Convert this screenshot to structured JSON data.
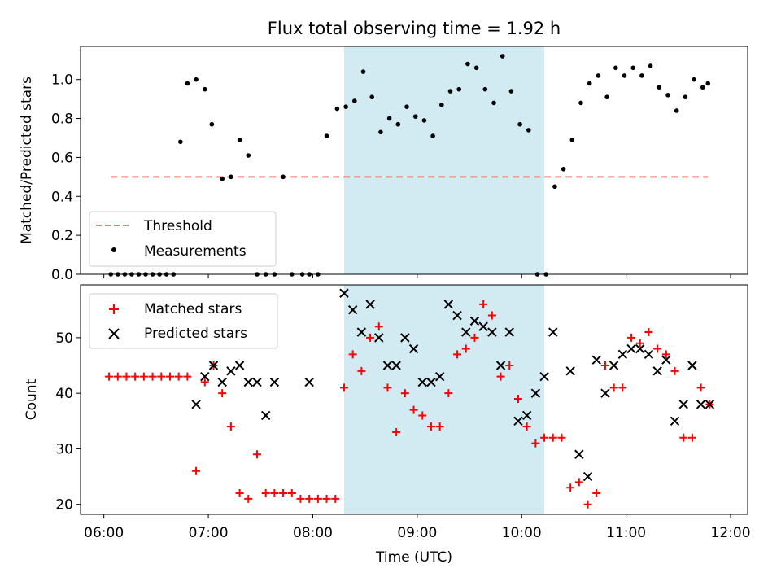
{
  "title": "Flux total observing time = 1.92 h",
  "xlabel": "Time (UTC)",
  "x_ticks": [
    "06:00",
    "07:00",
    "08:00",
    "09:00",
    "10:00",
    "11:00",
    "12:00"
  ],
  "highlight_span": [
    "08:18",
    "10:13"
  ],
  "colors": {
    "threshold": "#f08080",
    "measurements": "#000000",
    "matched": "#ff0000",
    "predicted": "#000000",
    "span": "#add8e6"
  },
  "chart_data": [
    {
      "type": "scatter",
      "ylabel": "Matched/Predicted stars",
      "ylim": [
        0,
        1.17
      ],
      "y_ticks": [
        "0.0",
        "0.2",
        "0.4",
        "0.6",
        "0.8",
        "1.0"
      ],
      "legend": {
        "placement": "lower-left",
        "entries": [
          "Threshold",
          "Measurements"
        ]
      },
      "threshold": {
        "name": "Threshold",
        "value": 0.5,
        "x_range": [
          "06:04",
          "11:47"
        ]
      },
      "series": [
        {
          "name": "Measurements",
          "x": [
            "06:04",
            "06:08",
            "06:12",
            "06:16",
            "06:20",
            "06:24",
            "06:28",
            "06:32",
            "06:36",
            "06:40",
            "06:44",
            "06:48",
            "06:53",
            "06:58",
            "07:02",
            "07:08",
            "07:13",
            "07:18",
            "07:23",
            "07:28",
            "07:33",
            "07:38",
            "07:43",
            "07:48",
            "07:54",
            "07:58",
            "08:03",
            "08:08",
            "08:14",
            "08:19",
            "08:24",
            "08:29",
            "08:34",
            "08:39",
            "08:44",
            "08:49",
            "08:54",
            "08:59",
            "09:04",
            "09:09",
            "09:14",
            "09:19",
            "09:24",
            "09:29",
            "09:34",
            "09:39",
            "09:44",
            "09:49",
            "09:54",
            "09:59",
            "10:04",
            "10:09",
            "10:14",
            "10:19",
            "10:24",
            "10:29",
            "10:34",
            "10:39",
            "10:44",
            "10:49",
            "10:54",
            "10:59",
            "11:04",
            "11:09",
            "11:14",
            "11:19",
            "11:24",
            "11:29",
            "11:34",
            "11:39",
            "11:44",
            "11:47"
          ],
          "y": [
            0,
            0,
            0,
            0,
            0,
            0,
            0,
            0,
            0,
            0,
            0.68,
            0.98,
            1.0,
            0.95,
            0.77,
            0.49,
            0.5,
            0.69,
            0.61,
            0,
            0,
            0,
            0.5,
            0,
            0,
            0,
            0,
            0.71,
            0.85,
            0.86,
            0.89,
            1.04,
            0.91,
            0.73,
            0.8,
            0.77,
            0.86,
            0.81,
            0.79,
            0.71,
            0.87,
            0.94,
            0.95,
            1.08,
            1.06,
            0.95,
            0.88,
            1.12,
            0.94,
            0.77,
            0.74,
            0,
            0,
            0.45,
            0.54,
            0.69,
            0.88,
            0.98,
            1.02,
            0.91,
            1.06,
            1.02,
            1.06,
            1.02,
            1.07,
            0.96,
            0.92,
            0.84,
            0.91,
            1.0,
            0.96,
            0.98
          ]
        }
      ]
    },
    {
      "type": "scatter",
      "ylabel": "Count",
      "ylim": [
        18.2,
        59.5
      ],
      "y_ticks": [
        "20",
        "30",
        "40",
        "50"
      ],
      "legend": {
        "placement": "upper-left",
        "entries": [
          "Matched stars",
          "Predicted stars"
        ]
      },
      "series": [
        {
          "name": "Matched stars",
          "x": [
            "06:03",
            "06:08",
            "06:13",
            "06:18",
            "06:23",
            "06:28",
            "06:33",
            "06:38",
            "06:43",
            "06:48",
            "06:53",
            "06:58",
            "07:03",
            "07:08",
            "07:13",
            "07:18",
            "07:23",
            "07:28",
            "07:33",
            "07:38",
            "07:43",
            "07:48",
            "07:53",
            "07:58",
            "08:03",
            "08:08",
            "08:13",
            "08:18",
            "08:23",
            "08:28",
            "08:33",
            "08:38",
            "08:43",
            "08:48",
            "08:53",
            "08:58",
            "09:03",
            "09:08",
            "09:13",
            "09:18",
            "09:23",
            "09:28",
            "09:33",
            "09:38",
            "09:43",
            "09:48",
            "09:53",
            "09:58",
            "10:03",
            "10:08",
            "10:13",
            "10:18",
            "10:23",
            "10:28",
            "10:33",
            "10:38",
            "10:43",
            "10:48",
            "10:53",
            "10:58",
            "11:03",
            "11:08",
            "11:13",
            "11:18",
            "11:23",
            "11:28",
            "11:33",
            "11:38",
            "11:43",
            "11:48"
          ],
          "y": [
            43,
            43,
            43,
            43,
            43,
            43,
            43,
            43,
            43,
            43,
            26,
            42,
            45,
            40,
            34,
            22,
            21,
            29,
            22,
            22,
            22,
            22,
            21,
            21,
            21,
            21,
            21,
            41,
            47,
            44,
            50,
            52,
            41,
            33,
            40,
            37,
            36,
            34,
            34,
            40,
            47,
            48,
            50,
            56,
            54,
            43,
            45,
            39,
            34,
            31,
            32,
            32,
            32,
            23,
            24,
            20,
            22,
            45,
            41,
            41,
            50,
            49,
            51,
            48,
            47,
            44,
            32,
            32,
            41,
            38
          ]
        },
        {
          "name": "Predicted stars",
          "x": [
            "06:53",
            "06:58",
            "07:03",
            "07:08",
            "07:13",
            "07:18",
            "07:23",
            "07:28",
            "07:33",
            "07:38",
            "07:58",
            "08:18",
            "08:23",
            "08:28",
            "08:33",
            "08:38",
            "08:43",
            "08:48",
            "08:53",
            "08:58",
            "09:03",
            "09:08",
            "09:13",
            "09:18",
            "09:23",
            "09:28",
            "09:33",
            "09:38",
            "09:43",
            "09:48",
            "09:53",
            "09:58",
            "10:03",
            "10:08",
            "10:13",
            "10:18",
            "10:28",
            "10:33",
            "10:38",
            "10:43",
            "10:48",
            "10:53",
            "10:58",
            "11:03",
            "11:08",
            "11:13",
            "11:18",
            "11:23",
            "11:28",
            "11:33",
            "11:38",
            "11:43",
            "11:48"
          ],
          "y": [
            38,
            43,
            45,
            42,
            44,
            45,
            42,
            42,
            36,
            42,
            42,
            58,
            55,
            51,
            56,
            50,
            45,
            45,
            50,
            48,
            42,
            42,
            43,
            56,
            54,
            51,
            53,
            52,
            51,
            45,
            51,
            35,
            36,
            40,
            43,
            51,
            44,
            29,
            25,
            46,
            40,
            45,
            47,
            48,
            48,
            47,
            44,
            46,
            35,
            38,
            45,
            38,
            38
          ]
        }
      ]
    }
  ]
}
